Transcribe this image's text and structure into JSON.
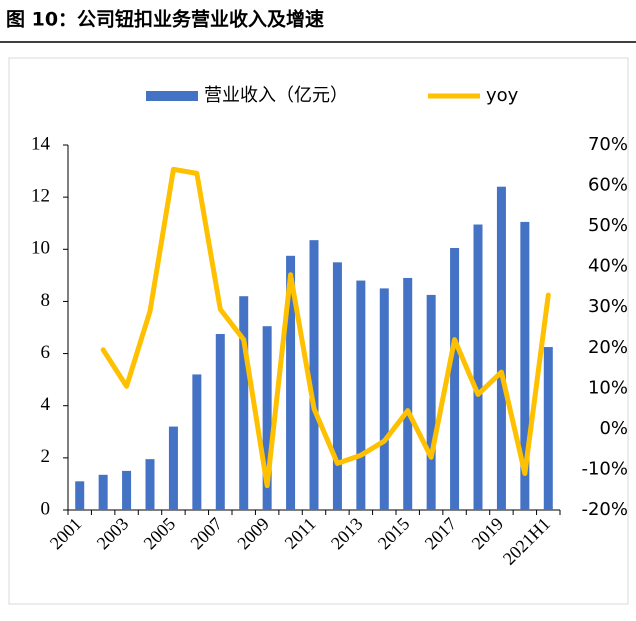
{
  "chart_data": {
    "type": "bar",
    "title": "图 10：公司钮扣业务营业收入及增速",
    "categories": [
      "2001",
      null,
      "2003",
      null,
      "2005",
      null,
      "2007",
      null,
      "2009",
      null,
      "2011",
      null,
      "2013",
      null,
      "2015",
      null,
      "2017",
      null,
      "2019",
      null,
      "2021H1"
    ],
    "series": [
      {
        "name": "营业收入（亿元）",
        "type": "bar",
        "color": "#4472c4",
        "values": [
          1.1,
          1.35,
          1.5,
          1.95,
          3.2,
          5.2,
          6.75,
          8.2,
          7.05,
          9.75,
          10.35,
          9.5,
          8.8,
          8.5,
          8.9,
          8.25,
          10.05,
          10.95,
          12.4,
          11.05,
          6.25
        ]
      },
      {
        "name": "yoy",
        "type": "line",
        "axis": "y2",
        "color": "#ffc000",
        "values": [
          null,
          19.5,
          10.5,
          29,
          64,
          63,
          29.5,
          22,
          -14,
          38,
          5,
          -8.5,
          -6.5,
          -3,
          4.5,
          -7,
          22,
          8.5,
          14,
          -11,
          33
        ]
      }
    ],
    "ylim": [
      0,
      14
    ],
    "yticks": [
      0,
      2,
      4,
      6,
      8,
      10,
      12,
      14
    ],
    "y2lim": [
      -20,
      70
    ],
    "y2ticks": [
      {
        "value": -20,
        "label": "-20%"
      },
      {
        "value": -10,
        "label": "-10%"
      },
      {
        "value": 0,
        "label": "0%"
      },
      {
        "value": 10,
        "label": "10%"
      },
      {
        "value": 20,
        "label": "20%"
      },
      {
        "value": 30,
        "label": "30%"
      },
      {
        "value": 40,
        "label": "40%"
      },
      {
        "value": 50,
        "label": "50%"
      },
      {
        "value": 60,
        "label": "60%"
      },
      {
        "value": 70,
        "label": "70%"
      }
    ],
    "legend": "top",
    "grid": false
  }
}
